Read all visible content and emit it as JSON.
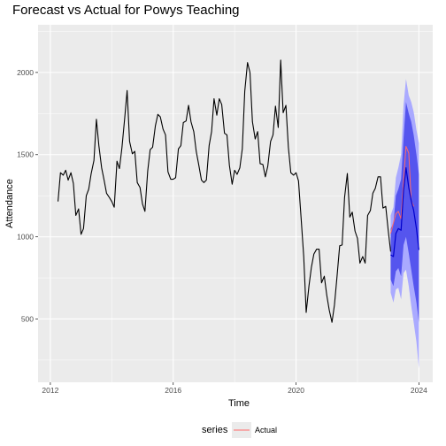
{
  "chart_data": {
    "type": "line",
    "title": "Forecast vs Actual for Powys Teaching",
    "xlabel": "Time",
    "ylabel": "Attendance",
    "xlim": [
      2011.6,
      2024.45
    ],
    "ylim": [
      115,
      2290
    ],
    "x_ticks": [
      2012,
      2016,
      2020,
      2024
    ],
    "y_ticks": [
      500,
      1000,
      1500,
      2000
    ],
    "grid": true,
    "legend": {
      "title": "series",
      "position": "bottom",
      "entries": [
        "Actual"
      ]
    },
    "colors": {
      "history": "#000000",
      "actual": "#ff6b6b",
      "forecast_mean": "#0000cc",
      "band_80": "#5555ee",
      "band_95": "#aaaaff",
      "panel": "#ebebeb",
      "grid_major": "#ffffff"
    },
    "series": [
      {
        "values": [
          [
            2012.25,
            1215
          ],
          [
            2012.33,
            1390
          ],
          [
            2012.42,
            1375
          ],
          [
            2012.5,
            1405
          ],
          [
            2012.58,
            1345
          ],
          [
            2012.67,
            1390
          ],
          [
            2012.75,
            1325
          ],
          [
            2012.83,
            1130
          ],
          [
            2012.92,
            1170
          ],
          [
            2013.0,
            1015
          ],
          [
            2013.08,
            1050
          ],
          [
            2013.17,
            1250
          ],
          [
            2013.25,
            1290
          ],
          [
            2013.33,
            1385
          ],
          [
            2013.42,
            1465
          ],
          [
            2013.5,
            1715
          ],
          [
            2013.58,
            1555
          ],
          [
            2013.67,
            1420
          ],
          [
            2013.75,
            1345
          ],
          [
            2013.83,
            1265
          ],
          [
            2013.92,
            1240
          ],
          [
            2014.0,
            1215
          ],
          [
            2014.08,
            1180
          ],
          [
            2014.17,
            1460
          ],
          [
            2014.25,
            1415
          ],
          [
            2014.33,
            1540
          ],
          [
            2014.42,
            1720
          ],
          [
            2014.5,
            1890
          ],
          [
            2014.58,
            1580
          ],
          [
            2014.67,
            1505
          ],
          [
            2014.75,
            1520
          ],
          [
            2014.83,
            1330
          ],
          [
            2014.92,
            1300
          ],
          [
            2015.0,
            1200
          ],
          [
            2015.08,
            1155
          ],
          [
            2015.17,
            1400
          ],
          [
            2015.25,
            1530
          ],
          [
            2015.33,
            1545
          ],
          [
            2015.42,
            1675
          ],
          [
            2015.5,
            1745
          ],
          [
            2015.58,
            1730
          ],
          [
            2015.67,
            1655
          ],
          [
            2015.75,
            1620
          ],
          [
            2015.83,
            1395
          ],
          [
            2015.92,
            1350
          ],
          [
            2016.0,
            1350
          ],
          [
            2016.08,
            1360
          ],
          [
            2016.17,
            1535
          ],
          [
            2016.25,
            1555
          ],
          [
            2016.33,
            1695
          ],
          [
            2016.42,
            1705
          ],
          [
            2016.5,
            1800
          ],
          [
            2016.58,
            1700
          ],
          [
            2016.67,
            1640
          ],
          [
            2016.75,
            1520
          ],
          [
            2016.83,
            1440
          ],
          [
            2016.92,
            1345
          ],
          [
            2017.0,
            1330
          ],
          [
            2017.08,
            1345
          ],
          [
            2017.17,
            1555
          ],
          [
            2017.25,
            1640
          ],
          [
            2017.33,
            1840
          ],
          [
            2017.42,
            1740
          ],
          [
            2017.5,
            1840
          ],
          [
            2017.58,
            1805
          ],
          [
            2017.67,
            1630
          ],
          [
            2017.75,
            1620
          ],
          [
            2017.83,
            1435
          ],
          [
            2017.92,
            1320
          ],
          [
            2018.0,
            1405
          ],
          [
            2018.08,
            1380
          ],
          [
            2018.17,
            1420
          ],
          [
            2018.25,
            1535
          ],
          [
            2018.33,
            1885
          ],
          [
            2018.42,
            2060
          ],
          [
            2018.5,
            2000
          ],
          [
            2018.58,
            1700
          ],
          [
            2018.67,
            1595
          ],
          [
            2018.75,
            1640
          ],
          [
            2018.83,
            1445
          ],
          [
            2018.92,
            1440
          ],
          [
            2019.0,
            1365
          ],
          [
            2019.08,
            1430
          ],
          [
            2019.17,
            1580
          ],
          [
            2019.25,
            1620
          ],
          [
            2019.33,
            1795
          ],
          [
            2019.42,
            1665
          ],
          [
            2019.5,
            2075
          ],
          [
            2019.58,
            1755
          ],
          [
            2019.67,
            1800
          ],
          [
            2019.75,
            1545
          ],
          [
            2019.83,
            1390
          ],
          [
            2019.92,
            1375
          ],
          [
            2020.0,
            1390
          ],
          [
            2020.08,
            1340
          ],
          [
            2020.17,
            1100
          ],
          [
            2020.25,
            880
          ],
          [
            2020.33,
            540
          ],
          [
            2020.42,
            700
          ],
          [
            2020.5,
            815
          ],
          [
            2020.58,
            895
          ],
          [
            2020.67,
            925
          ],
          [
            2020.75,
            925
          ],
          [
            2020.83,
            720
          ],
          [
            2020.92,
            760
          ],
          [
            2021.0,
            645
          ],
          [
            2021.08,
            555
          ],
          [
            2021.17,
            480
          ],
          [
            2021.25,
            585
          ],
          [
            2021.33,
            750
          ],
          [
            2021.42,
            945
          ],
          [
            2021.5,
            950
          ],
          [
            2021.58,
            1240
          ],
          [
            2021.67,
            1385
          ],
          [
            2021.75,
            1120
          ],
          [
            2021.83,
            1150
          ],
          [
            2021.92,
            1035
          ],
          [
            2022.0,
            990
          ],
          [
            2022.08,
            840
          ],
          [
            2022.17,
            880
          ],
          [
            2022.25,
            840
          ],
          [
            2022.33,
            1130
          ],
          [
            2022.42,
            1160
          ],
          [
            2022.5,
            1265
          ],
          [
            2022.58,
            1295
          ],
          [
            2022.67,
            1365
          ],
          [
            2022.75,
            1365
          ],
          [
            2022.83,
            1175
          ],
          [
            2022.92,
            1185
          ],
          [
            2023.0,
            1040
          ],
          [
            2023.08,
            910
          ]
        ]
      },
      {
        "name": "Actual",
        "values": [
          [
            2023.08,
            1020
          ],
          [
            2023.17,
            1085
          ],
          [
            2023.25,
            1140
          ],
          [
            2023.33,
            1155
          ],
          [
            2023.42,
            1110
          ],
          [
            2023.5,
            1340
          ],
          [
            2023.58,
            1550
          ],
          [
            2023.67,
            1510
          ],
          [
            2023.75,
            1220
          ],
          [
            2023.83,
            1185
          ]
        ]
      },
      {
        "values": [
          [
            2023.08,
            890
          ],
          [
            2023.17,
            880
          ],
          [
            2023.25,
            1020
          ],
          [
            2023.33,
            1050
          ],
          [
            2023.42,
            1040
          ],
          [
            2023.5,
            1280
          ],
          [
            2023.58,
            1420
          ],
          [
            2023.67,
            1300
          ],
          [
            2023.75,
            1220
          ],
          [
            2023.83,
            1160
          ],
          [
            2023.92,
            1050
          ],
          [
            2024.0,
            920
          ]
        ]
      }
    ],
    "intervals": {
      "x": [
        2023.08,
        2023.17,
        2023.25,
        2023.33,
        2023.42,
        2023.5,
        2023.58,
        2023.67,
        2023.75,
        2023.83,
        2023.92,
        2024.0
      ],
      "lo80": [
        740,
        700,
        790,
        810,
        760,
        950,
        1000,
        900,
        800,
        700,
        600,
        480
      ],
      "hi80": [
        1050,
        1080,
        1250,
        1290,
        1350,
        1600,
        1820,
        1750,
        1700,
        1620,
        1500,
        1380
      ],
      "lo95": [
        660,
        600,
        680,
        690,
        620,
        780,
        800,
        700,
        580,
        480,
        360,
        200
      ],
      "hi95": [
        1130,
        1180,
        1360,
        1420,
        1500,
        1800,
        1960,
        1860,
        1820,
        1760,
        1650,
        1570
      ]
    }
  }
}
